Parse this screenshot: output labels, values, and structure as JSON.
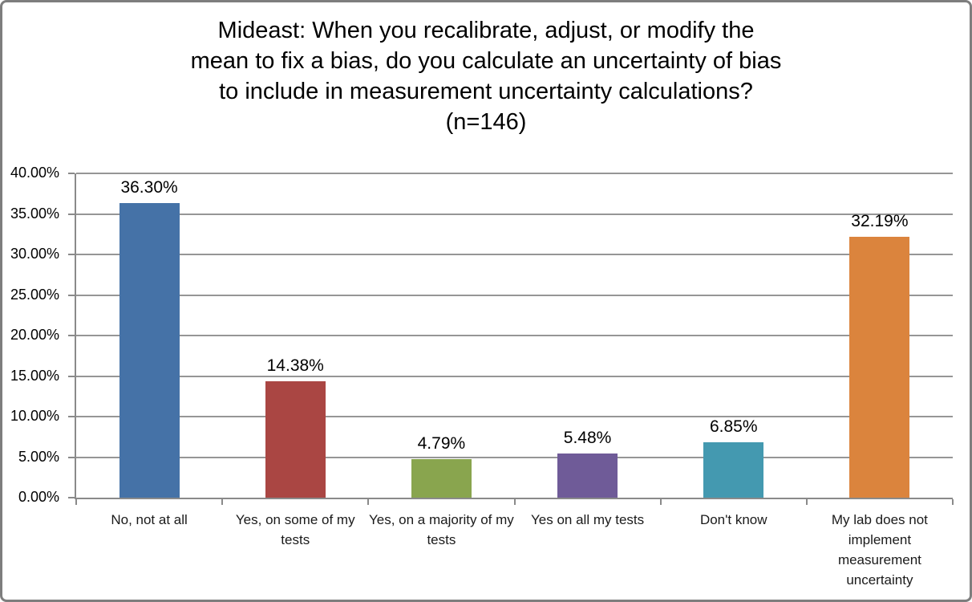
{
  "chart_data": {
    "type": "bar",
    "title": "Mideast: When you recalibrate, adjust, or modify the mean to fix a bias, do you calculate an uncertainty of bias to include in measurement uncertainty calculations? (n=146)",
    "title_lines": [
      "Mideast: When you recalibrate, adjust, or modify the",
      "mean to fix a bias, do you calculate an uncertainty of bias",
      "to include in measurement uncertainty calculations?",
      "(n=146)"
    ],
    "sample_size": "n=146",
    "categories": [
      "No, not at all",
      "Yes, on some of my tests",
      "Yes, on a majority of my tests",
      "Yes on all my tests",
      "Don't know",
      "My lab does not implement measurement uncertainty"
    ],
    "values": [
      36.3,
      14.38,
      4.79,
      5.48,
      6.85,
      32.19
    ],
    "data_labels": [
      "36.30%",
      "14.38%",
      "4.79%",
      "5.48%",
      "6.85%",
      "32.19%"
    ],
    "bar_colors": [
      "#4572A7",
      "#AA4643",
      "#89A54E",
      "#6F5B98",
      "#4499B0",
      "#DB843D"
    ],
    "xlabel": "",
    "ylabel": "",
    "ylim": [
      0,
      40
    ],
    "ytick_step": 5,
    "ytick_labels": [
      "0.00%",
      "5.00%",
      "10.00%",
      "15.00%",
      "20.00%",
      "25.00%",
      "30.00%",
      "35.00%",
      "40.00%"
    ],
    "grid": true,
    "legend_position": "none",
    "colors": {
      "gridline": "#969696",
      "axis": "#8a8a8a",
      "text": "#000000",
      "frame_border": "#7e7e7e",
      "background": "#ffffff"
    }
  }
}
